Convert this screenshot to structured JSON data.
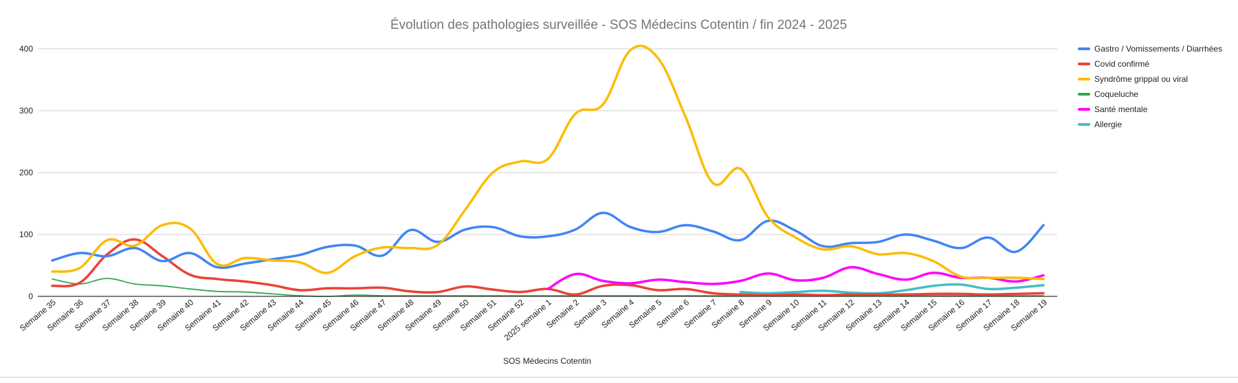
{
  "chart_data": {
    "type": "line",
    "title": "Évolution des pathologies surveillée - SOS Médecins Cotentin / fin 2024 - 2025",
    "xlabel": "SOS Médecins Cotentin",
    "ylabel": "",
    "ylim": [
      0,
      400
    ],
    "yticks": [
      0,
      100,
      200,
      300,
      400
    ],
    "grid": true,
    "legend_position": "right",
    "categories": [
      "Semaine 35",
      "Semaine 36",
      "Semaine 37",
      "Semaine 38",
      "Semaine 39",
      "Semaine 40",
      "Semaine 41",
      "Semaine 42",
      "Semaine 43",
      "Semaine 44",
      "Semaine 45",
      "Semaine 46",
      "Semaine 47",
      "Semaine 48",
      "Semaine 49",
      "Semaine 50",
      "Semaine 51",
      "Semaine 52",
      "2025 semaine 1",
      "Semaine 2",
      "Semaine 3",
      "Semaine 4",
      "Semaine 5",
      "Semaine 6",
      "Semaine 7",
      "Semaine 8",
      "Semaine 9",
      "Semaine 10",
      "Semaine 11",
      "Semaine 12",
      "Semaine 13",
      "Semaine 14",
      "Semaine 15",
      "Semaine 16",
      "Semaine 17",
      "Semaine 18",
      "Semaine 19"
    ],
    "series": [
      {
        "name": "Gastro / Vomissements / Diarrhées",
        "color": "#4285f4",
        "stroke": 3.5,
        "values": [
          58,
          70,
          65,
          78,
          57,
          70,
          47,
          53,
          60,
          67,
          80,
          82,
          66,
          107,
          88,
          108,
          112,
          97,
          97,
          108,
          135,
          112,
          104,
          115,
          105,
          91,
          122,
          106,
          81,
          86,
          88,
          100,
          90,
          78,
          95,
          72,
          115
        ]
      },
      {
        "name": "Covid confirmé",
        "color": "#ea4335",
        "stroke": 3.5,
        "values": [
          17,
          22,
          68,
          92,
          65,
          35,
          28,
          24,
          18,
          10,
          13,
          13,
          14,
          8,
          7,
          16,
          11,
          7,
          12,
          3,
          17,
          18,
          10,
          12,
          5,
          3,
          2,
          3,
          2,
          3,
          3,
          3,
          4,
          4,
          3,
          4,
          5
        ]
      },
      {
        "name": "Syndrôme grippal ou viral",
        "color": "#fbbc04",
        "stroke": 3.5,
        "values": [
          40,
          46,
          91,
          82,
          115,
          110,
          52,
          62,
          58,
          55,
          38,
          65,
          79,
          78,
          83,
          140,
          200,
          218,
          222,
          295,
          310,
          398,
          385,
          290,
          183,
          206,
          128,
          95,
          76,
          81,
          68,
          70,
          57,
          32,
          30,
          30,
          28
        ]
      },
      {
        "name": "Coqueluche",
        "color": "#34a853",
        "stroke": 1.8,
        "values": [
          28,
          20,
          29,
          20,
          17,
          12,
          8,
          7,
          4,
          1,
          0,
          2,
          1,
          1,
          1,
          1,
          1,
          1,
          1,
          1,
          1,
          1,
          1,
          1,
          1,
          1,
          1,
          1,
          1,
          1,
          1,
          1,
          1,
          1,
          1,
          1,
          1
        ]
      },
      {
        "name": "Santé mentale",
        "color": "#ff00ff",
        "stroke": 3.5,
        "values": [
          null,
          null,
          null,
          null,
          null,
          null,
          null,
          null,
          null,
          null,
          null,
          null,
          null,
          null,
          null,
          null,
          null,
          null,
          12,
          36,
          25,
          21,
          27,
          23,
          20,
          25,
          37,
          26,
          30,
          47,
          36,
          27,
          38,
          30,
          30,
          24,
          34
        ]
      },
      {
        "name": "Allergie",
        "color": "#46bdc6",
        "stroke": 3.5,
        "values": [
          null,
          null,
          null,
          null,
          null,
          null,
          null,
          null,
          null,
          null,
          null,
          null,
          null,
          null,
          null,
          null,
          null,
          null,
          null,
          null,
          null,
          null,
          null,
          null,
          null,
          7,
          5,
          7,
          9,
          6,
          5,
          10,
          17,
          19,
          12,
          14,
          18
        ]
      }
    ]
  }
}
